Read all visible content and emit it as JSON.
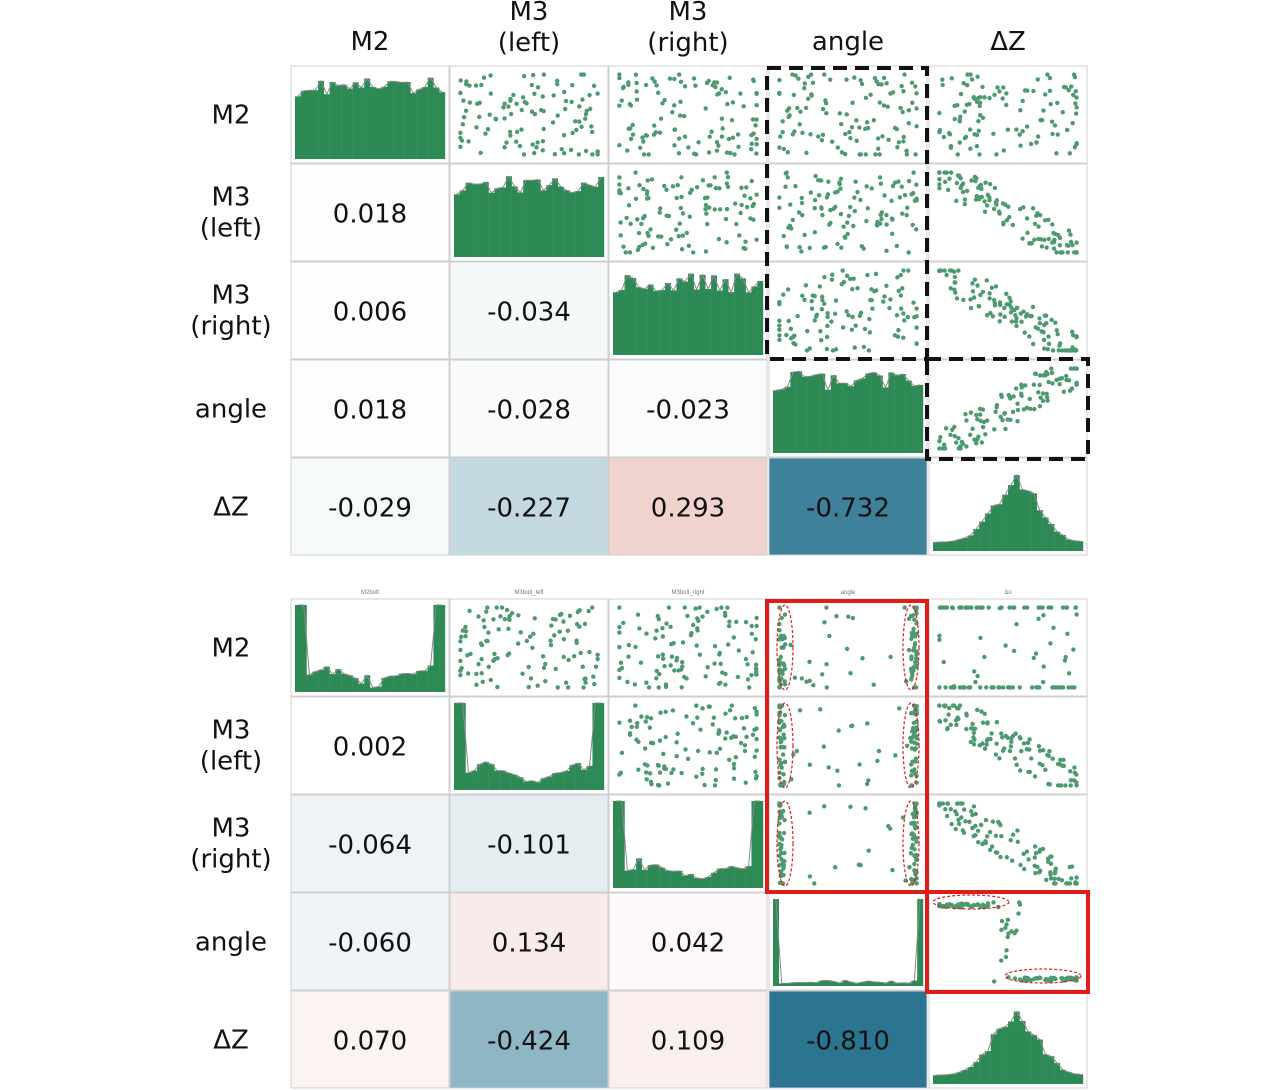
{
  "chart_data": [
    {
      "type": "scatter-matrix",
      "variables": [
        "M2",
        "M3\n(left)",
        "M3\n(right)",
        "angle",
        "ΔZ"
      ],
      "small_titles": [],
      "correlations": [
        {
          "row": 1,
          "col": 0,
          "value": "0.018"
        },
        {
          "row": 2,
          "col": 0,
          "value": "0.006"
        },
        {
          "row": 2,
          "col": 1,
          "value": "-0.034"
        },
        {
          "row": 3,
          "col": 0,
          "value": "0.018"
        },
        {
          "row": 3,
          "col": 1,
          "value": "-0.028"
        },
        {
          "row": 3,
          "col": 2,
          "value": "-0.023"
        },
        {
          "row": 4,
          "col": 0,
          "value": "-0.029"
        },
        {
          "row": 4,
          "col": 1,
          "value": "-0.227"
        },
        {
          "row": 4,
          "col": 2,
          "value": "0.293"
        },
        {
          "row": 4,
          "col": 3,
          "value": "-0.732"
        }
      ],
      "highlight": {
        "style": "dashed",
        "color": "#111111",
        "cells": [
          "angle column rows M2–M3 (right)",
          "ΔZ column row angle"
        ]
      }
    },
    {
      "type": "scatter-matrix",
      "variables": [
        "M2",
        "M3\n(left)",
        "M3\n(right)",
        "angle",
        "ΔZ"
      ],
      "small_titles": [
        "M2bolt",
        "M3bolt_left",
        "M3bolt_right",
        "angle",
        "Δu"
      ],
      "correlations": [
        {
          "row": 1,
          "col": 0,
          "value": "0.002"
        },
        {
          "row": 2,
          "col": 0,
          "value": "-0.064"
        },
        {
          "row": 2,
          "col": 1,
          "value": "-0.101"
        },
        {
          "row": 3,
          "col": 0,
          "value": "-0.060"
        },
        {
          "row": 3,
          "col": 1,
          "value": "0.134"
        },
        {
          "row": 3,
          "col": 2,
          "value": "0.042"
        },
        {
          "row": 4,
          "col": 0,
          "value": "0.070"
        },
        {
          "row": 4,
          "col": 1,
          "value": "-0.424"
        },
        {
          "row": 4,
          "col": 2,
          "value": "0.109"
        },
        {
          "row": 4,
          "col": 3,
          "value": "-0.810"
        }
      ],
      "highlight": {
        "style": "solid",
        "color": "#dd1c1c",
        "cells": [
          "angle column rows M2–M3 (right)",
          "ΔZ column row angle"
        ]
      }
    }
  ],
  "colors": {
    "bar": "#2d8a55",
    "point": "#4d9a6f",
    "positive": "#d8867a",
    "negative": "#2c7591",
    "dashed_box": "#111111",
    "red_box": "#dd1c1c"
  }
}
